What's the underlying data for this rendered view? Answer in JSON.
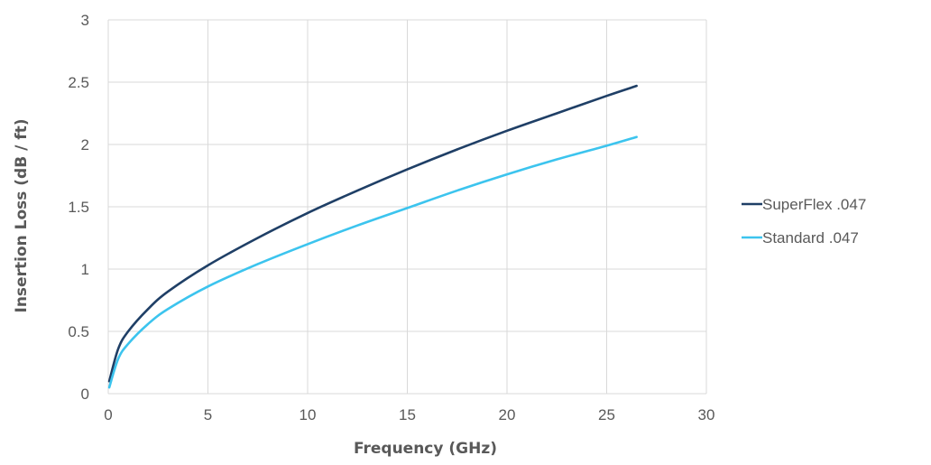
{
  "chart_data": {
    "type": "line",
    "title": "",
    "xlabel": "Frequency (GHz)",
    "ylabel": "Insertion Loss (dB / ft)",
    "xlim": [
      0,
      30
    ],
    "ylim": [
      0,
      3
    ],
    "x_ticks": [
      "0",
      "5",
      "10",
      "15",
      "20",
      "25",
      "30"
    ],
    "y_ticks": [
      "0",
      "0.5",
      "1",
      "1.5",
      "2",
      "2.5",
      "3"
    ],
    "grid": true,
    "legend_position": "right",
    "series": [
      {
        "name": "SuperFlex .047",
        "color": "#1f3f66",
        "x": [
          0.05,
          0.5,
          1,
          2,
          3,
          5,
          7.5,
          10,
          12.5,
          15,
          17.5,
          20,
          22.5,
          25,
          26.5
        ],
        "y": [
          0.1,
          0.36,
          0.5,
          0.68,
          0.82,
          1.03,
          1.25,
          1.45,
          1.63,
          1.8,
          1.96,
          2.11,
          2.25,
          2.39,
          2.47
        ]
      },
      {
        "name": "Standard .047",
        "color": "#3cc4ee",
        "x": [
          0.05,
          0.5,
          1,
          2,
          3,
          5,
          7.5,
          10,
          12.5,
          15,
          17.5,
          20,
          22.5,
          25,
          26.5
        ],
        "y": [
          0.05,
          0.28,
          0.4,
          0.56,
          0.68,
          0.86,
          1.04,
          1.2,
          1.35,
          1.49,
          1.63,
          1.76,
          1.88,
          1.99,
          2.06
        ]
      }
    ]
  }
}
